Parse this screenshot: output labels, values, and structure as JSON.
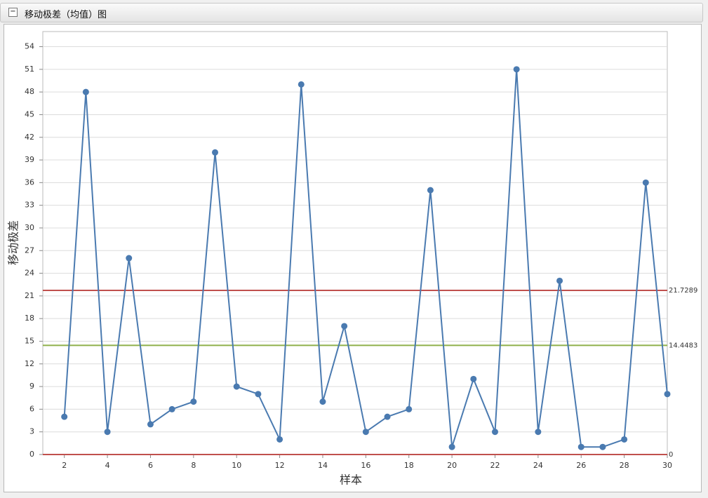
{
  "panel_title": "移动极差（均值）图",
  "chart_data": {
    "type": "line",
    "x_label": "样本",
    "y_label": "移动极差",
    "x": [
      2,
      3,
      4,
      5,
      6,
      7,
      8,
      9,
      10,
      11,
      12,
      13,
      14,
      15,
      16,
      17,
      18,
      19,
      20,
      21,
      22,
      23,
      24,
      25,
      26,
      27,
      28,
      29,
      30
    ],
    "series": [
      {
        "name": "移动极差",
        "color": "#4a7ab0",
        "values": [
          5,
          48,
          3,
          26,
          4,
          6,
          7,
          40,
          9,
          8,
          2,
          49,
          7,
          17,
          3,
          5,
          6,
          35,
          1,
          10,
          3,
          51,
          3,
          23,
          1,
          1,
          2,
          36,
          8
        ]
      }
    ],
    "reference_lines": [
      {
        "value": 21.7289,
        "color": "#c0504d"
      },
      {
        "value": 14.4483,
        "color": "#8fb04a"
      },
      {
        "value": 0,
        "color": "#c0504d"
      }
    ],
    "xlim": [
      1,
      30
    ],
    "xticks": [
      2,
      4,
      6,
      8,
      10,
      12,
      14,
      16,
      18,
      20,
      22,
      24,
      26,
      28,
      30
    ],
    "ylim": [
      0,
      56
    ],
    "yticks": [
      0,
      3,
      6,
      9,
      12,
      15,
      18,
      21,
      24,
      27,
      30,
      33,
      36,
      39,
      42,
      45,
      48,
      51,
      54
    ],
    "grid": true
  }
}
